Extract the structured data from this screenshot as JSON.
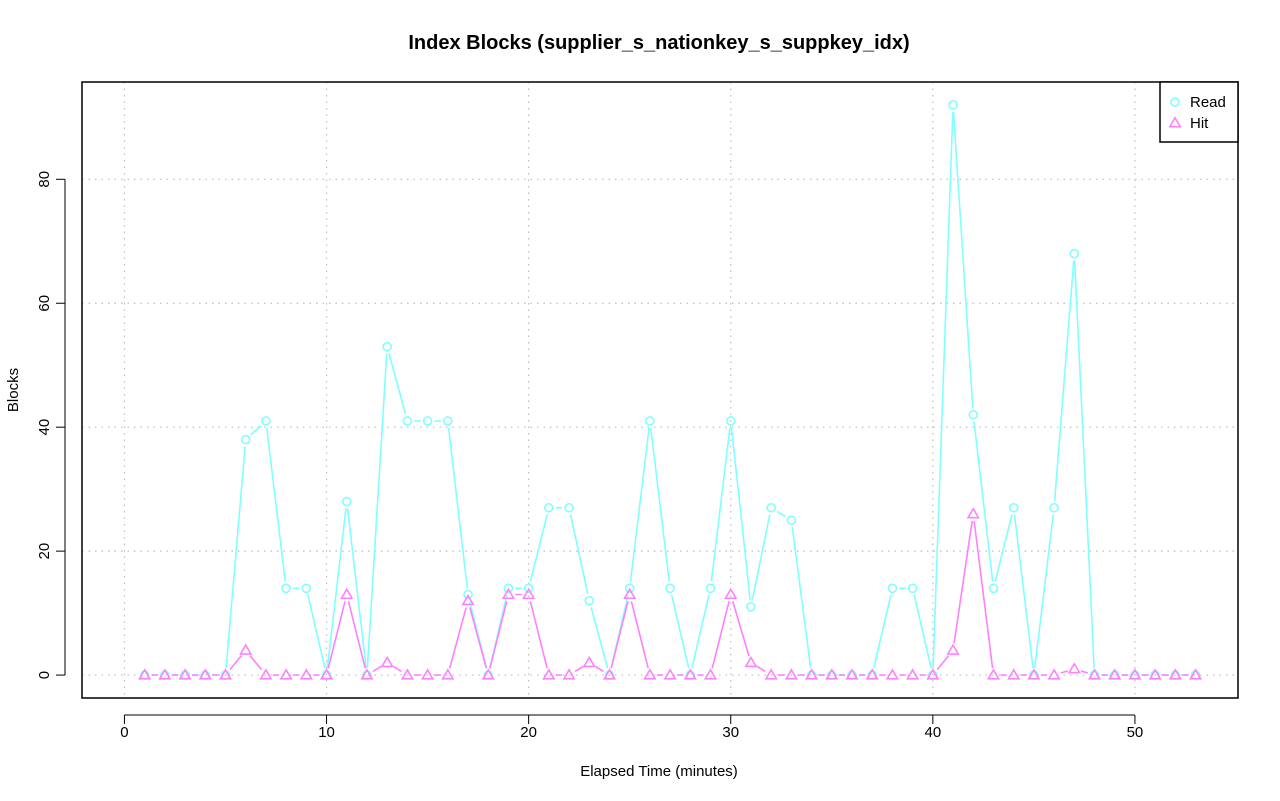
{
  "chart_data": {
    "type": "line",
    "title": "Index Blocks (supplier_s_nationkey_s_suppkey_idx)",
    "xlabel": "Elapsed Time (minutes)",
    "ylabel": "Blocks",
    "xlim": [
      -2.1,
      55.1
    ],
    "ylim": [
      -3.7,
      95.7
    ],
    "xticks": [
      0,
      10,
      20,
      30,
      40,
      50
    ],
    "yticks": [
      0,
      20,
      40,
      60,
      80
    ],
    "grid": true,
    "legend_position": "top-right",
    "x": [
      1,
      2,
      3,
      4,
      5,
      6,
      7,
      8,
      9,
      10,
      11,
      12,
      13,
      14,
      15,
      16,
      17,
      18,
      19,
      20,
      21,
      22,
      23,
      24,
      25,
      26,
      27,
      28,
      29,
      30,
      31,
      32,
      33,
      34,
      35,
      36,
      37,
      38,
      39,
      40,
      41,
      42,
      43,
      44,
      45,
      46,
      47,
      48,
      49,
      50,
      51,
      52,
      53
    ],
    "series": [
      {
        "name": "Read",
        "color": "#7fffff",
        "marker": "circle",
        "values": [
          0,
          0,
          0,
          0,
          0,
          38,
          41,
          14,
          14,
          0,
          28,
          0,
          53,
          41,
          41,
          41,
          13,
          0,
          14,
          14,
          27,
          27,
          12,
          0,
          14,
          41,
          14,
          0,
          14,
          41,
          11,
          27,
          25,
          0,
          0,
          0,
          0,
          14,
          14,
          0,
          92,
          42,
          14,
          27,
          0,
          27,
          68,
          0,
          0,
          0,
          0,
          0,
          0
        ]
      },
      {
        "name": "Hit",
        "color": "#ff80ff",
        "marker": "triangle",
        "values": [
          0,
          0,
          0,
          0,
          0,
          4,
          0,
          0,
          0,
          0,
          13,
          0,
          2,
          0,
          0,
          0,
          12,
          0,
          13,
          13,
          0,
          0,
          2,
          0,
          13,
          0,
          0,
          0,
          0,
          13,
          2,
          0,
          0,
          0,
          0,
          0,
          0,
          0,
          0,
          0,
          4,
          26,
          0,
          0,
          0,
          0,
          1,
          0,
          0,
          0,
          0,
          0,
          0
        ]
      }
    ]
  }
}
